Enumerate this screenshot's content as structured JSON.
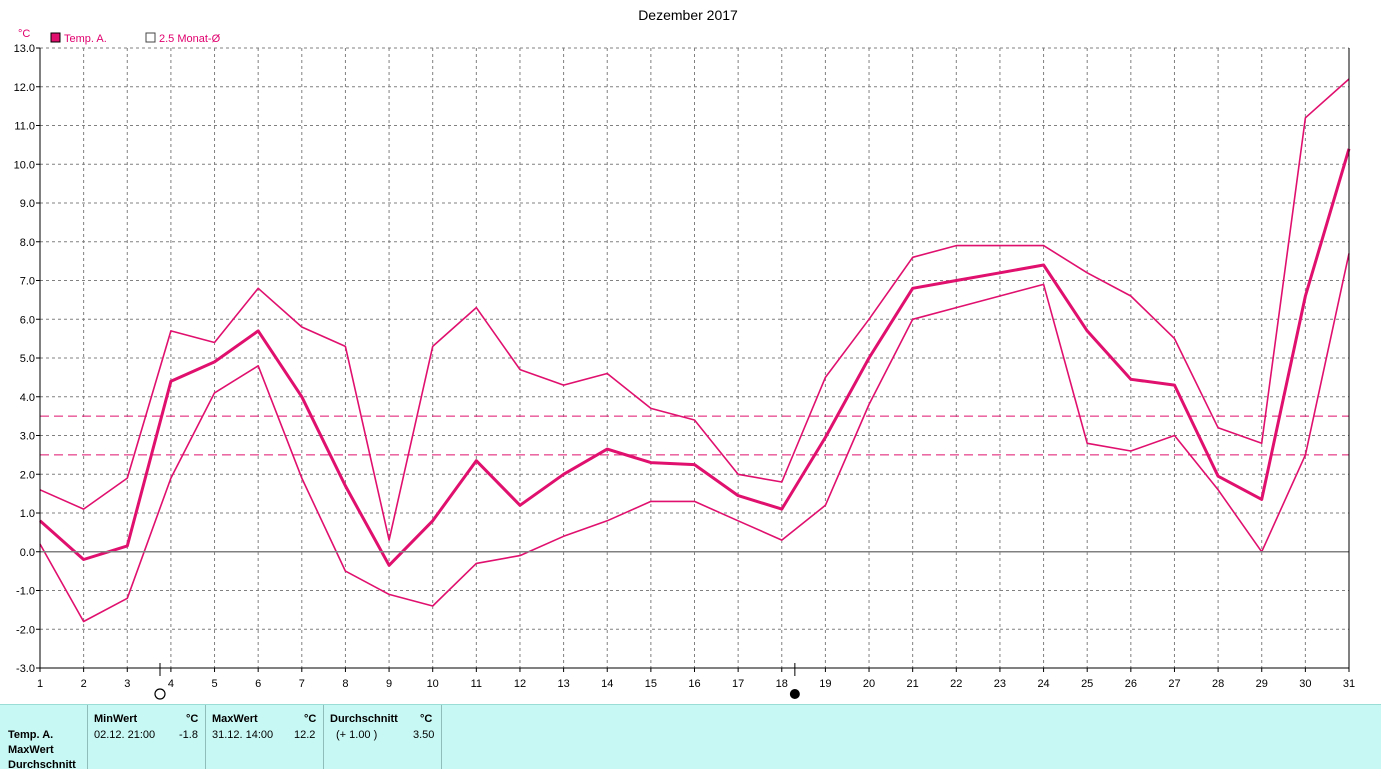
{
  "chart_data": {
    "type": "line",
    "title": "Dezember 2017",
    "ylabel": "°C",
    "ylim": [
      -3.0,
      13.0
    ],
    "y_ticks": [
      "13.0",
      "12.0",
      "11.0",
      "10.0",
      "9.0",
      "8.0",
      "7.0",
      "6.0",
      "5.0",
      "4.0",
      "3.0",
      "2.0",
      "1.0",
      "0.0",
      "-1.0",
      "-2.0",
      "-3.0"
    ],
    "categories": [
      "1",
      "2",
      "3",
      "4",
      "5",
      "6",
      "7",
      "8",
      "9",
      "10",
      "11",
      "12",
      "13",
      "14",
      "15",
      "16",
      "17",
      "18",
      "19",
      "20",
      "21",
      "22",
      "23",
      "24",
      "25",
      "26",
      "27",
      "28",
      "29",
      "30",
      "31"
    ],
    "grid": true,
    "legend_position": "top-left",
    "legend": [
      {
        "label": "Temp. A.",
        "marker": "filled-square"
      },
      {
        "label": "2.5 Monat-Ø",
        "marker": "hollow-square"
      }
    ],
    "series": [
      {
        "name": "Temp. A.",
        "role": "mean",
        "values": [
          0.8,
          -0.2,
          0.15,
          4.4,
          4.9,
          5.7,
          4.0,
          1.7,
          -0.35,
          0.8,
          2.35,
          1.2,
          2.0,
          2.65,
          2.3,
          2.25,
          1.45,
          1.1,
          2.95,
          5.0,
          6.8,
          7.0,
          7.2,
          7.4,
          5.7,
          4.45,
          4.3,
          1.95,
          1.35,
          6.6,
          10.4
        ]
      },
      {
        "role": "max",
        "values": [
          1.6,
          1.1,
          1.9,
          5.7,
          5.4,
          6.8,
          5.8,
          5.3,
          0.3,
          5.3,
          6.3,
          4.7,
          4.3,
          4.6,
          3.7,
          3.4,
          2.0,
          1.8,
          4.5,
          6.0,
          7.6,
          7.9,
          7.9,
          7.9,
          7.2,
          6.6,
          5.5,
          3.2,
          2.8,
          11.2,
          12.2
        ]
      },
      {
        "role": "min",
        "values": [
          0.2,
          -1.8,
          -1.2,
          1.9,
          4.1,
          4.8,
          1.9,
          -0.5,
          -1.1,
          -1.4,
          -0.3,
          -0.1,
          0.4,
          0.8,
          1.3,
          1.3,
          0.8,
          0.3,
          1.2,
          3.8,
          6.0,
          6.3,
          6.6,
          6.9,
          2.8,
          2.6,
          3.0,
          1.6,
          0.0,
          2.5,
          7.7
        ]
      }
    ],
    "reference_lines": [
      3.5,
      2.5
    ],
    "moon_phases": [
      {
        "day": 3.75,
        "phase": "full"
      },
      {
        "day": 18.3,
        "phase": "new"
      }
    ],
    "colors": {
      "series": "#e0106e",
      "grid": "#808080",
      "zero_line": "#808080",
      "axis": "#000000"
    }
  },
  "stats": {
    "row_labels": [
      "Temp. A.",
      "MaxWert",
      "Durchschnitt"
    ],
    "min": {
      "header": "MinWert",
      "unit": "°C",
      "date": "02.12.  21:00",
      "value": "-1.8"
    },
    "max": {
      "header": "MaxWert",
      "unit": "°C",
      "date": "31.12.  14:00",
      "value": "12.2"
    },
    "avg": {
      "header": "Durchschnitt",
      "unit": "°C",
      "delta": "(+ 1.00 )",
      "value": "3.50"
    }
  }
}
